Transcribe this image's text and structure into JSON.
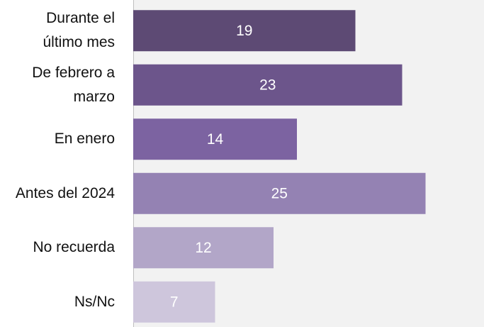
{
  "chart_data": {
    "type": "hbar",
    "categories": [
      "Durante el último mes",
      "De febrero a marzo",
      "En enero",
      "Antes del 2024",
      "No recuerda",
      "Ns/Nc"
    ],
    "values": [
      19,
      23,
      14,
      25,
      12,
      7
    ],
    "colors": [
      "#5d4a74",
      "#6c558b",
      "#7c63a1",
      "#9482b3",
      "#b2a6c8",
      "#cec6dc"
    ],
    "xlim": [
      0,
      30
    ],
    "grid": false
  }
}
